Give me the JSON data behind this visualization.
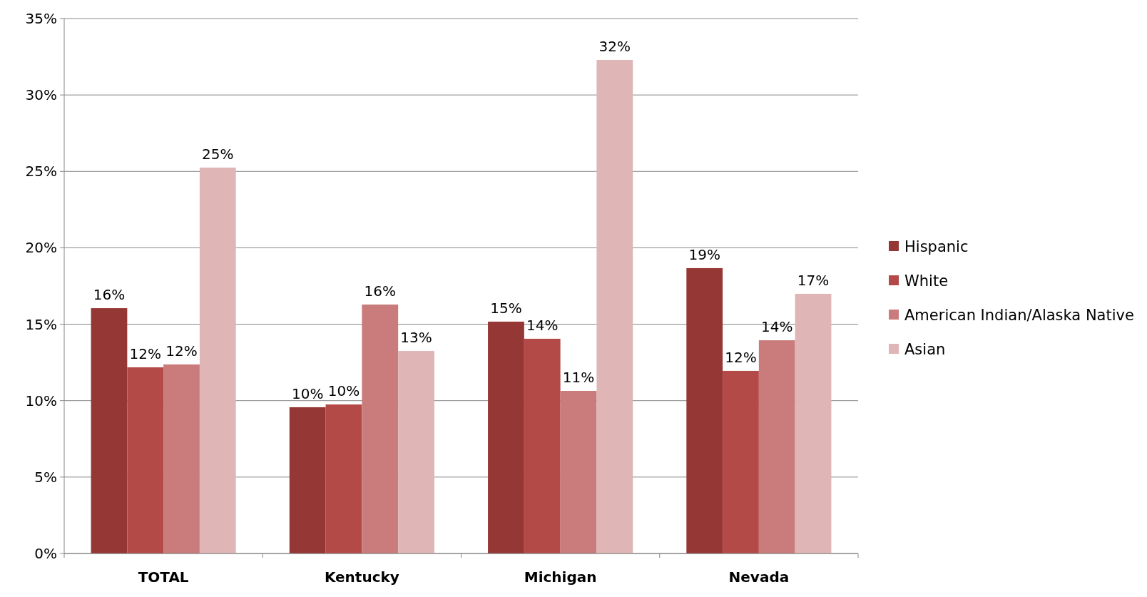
{
  "chart_data": {
    "type": "bar",
    "categories": [
      "TOTAL",
      "Kentucky",
      "Michigan",
      "Nevada"
    ],
    "series": [
      {
        "name": "Hispanic",
        "color": "#953735",
        "values": [
          16.05,
          9.57,
          15.17,
          18.67
        ],
        "value_labels": [
          "16%",
          "10%",
          "15%",
          "19%"
        ]
      },
      {
        "name": "White",
        "color": "#b44a48",
        "values": [
          12.18,
          9.75,
          14.05,
          11.95
        ],
        "value_labels": [
          "12%",
          "10%",
          "14%",
          "12%"
        ]
      },
      {
        "name": "American Indian/Alaska Native",
        "color": "#c97c7b",
        "values": [
          12.37,
          16.29,
          10.64,
          13.95
        ],
        "value_labels": [
          "12%",
          "16%",
          "11%",
          "14%"
        ]
      },
      {
        "name": "Asian",
        "color": "#dfb5b5",
        "values": [
          25.25,
          13.25,
          32.29,
          16.99
        ],
        "value_labels": [
          "25%",
          "13%",
          "32%",
          "17%"
        ]
      }
    ],
    "ylim": [
      0,
      35
    ],
    "yticks": [
      {
        "value": 0,
        "label": "0%"
      },
      {
        "value": 5,
        "label": "5%"
      },
      {
        "value": 10,
        "label": "10%"
      },
      {
        "value": 15,
        "label": "15%"
      },
      {
        "value": 20,
        "label": "20%"
      },
      {
        "value": 25,
        "label": "25%"
      },
      {
        "value": 30,
        "label": "30%"
      },
      {
        "value": 35,
        "label": "35%"
      }
    ],
    "grid": "y",
    "legend": "right"
  }
}
